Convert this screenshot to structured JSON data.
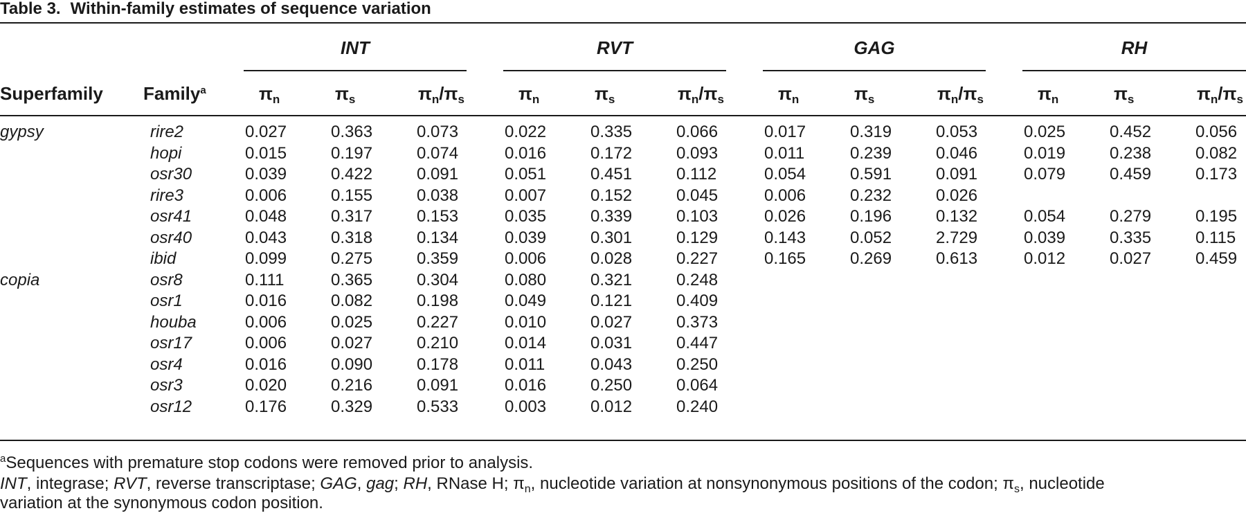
{
  "table": {
    "label": "Table 3.",
    "title": "Within-family estimates of sequence variation",
    "headers": {
      "superfamily": "Superfamily",
      "family": "Family",
      "family_sup": "a",
      "groups": [
        "INT",
        "RVT",
        "GAG",
        "RH"
      ],
      "sub": [
        {
          "pi": "π",
          "sub": "n"
        },
        {
          "pi": "π",
          "sub": "s"
        },
        {
          "pi": "π",
          "sub": "n",
          "pi2": "π",
          "sub2": "s"
        }
      ]
    },
    "rows": [
      {
        "superfamily": "gypsy",
        "family": "rire2",
        "values": [
          "0.027",
          "0.363",
          "0.073",
          "0.022",
          "0.335",
          "0.066",
          "0.017",
          "0.319",
          "0.053",
          "0.025",
          "0.452",
          "0.056"
        ]
      },
      {
        "superfamily": "",
        "family": "hopi",
        "values": [
          "0.015",
          "0.197",
          "0.074",
          "0.016",
          "0.172",
          "0.093",
          "0.011",
          "0.239",
          "0.046",
          "0.019",
          "0.238",
          "0.082"
        ]
      },
      {
        "superfamily": "",
        "family": "osr30",
        "values": [
          "0.039",
          "0.422",
          "0.091",
          "0.051",
          "0.451",
          "0.112",
          "0.054",
          "0.591",
          "0.091",
          "0.079",
          "0.459",
          "0.173"
        ]
      },
      {
        "superfamily": "",
        "family": "rire3",
        "values": [
          "0.006",
          "0.155",
          "0.038",
          "0.007",
          "0.152",
          "0.045",
          "0.006",
          "0.232",
          "0.026",
          "",
          "",
          ""
        ]
      },
      {
        "superfamily": "",
        "family": "osr41",
        "values": [
          "0.048",
          "0.317",
          "0.153",
          "0.035",
          "0.339",
          "0.103",
          "0.026",
          "0.196",
          "0.132",
          "0.054",
          "0.279",
          "0.195"
        ]
      },
      {
        "superfamily": "",
        "family": "osr40",
        "values": [
          "0.043",
          "0.318",
          "0.134",
          "0.039",
          "0.301",
          "0.129",
          "0.143",
          "0.052",
          "2.729",
          "0.039",
          "0.335",
          "0.115"
        ]
      },
      {
        "superfamily": "",
        "family": "ibid",
        "values": [
          "0.099",
          "0.275",
          "0.359",
          "0.006",
          "0.028",
          "0.227",
          "0.165",
          "0.269",
          "0.613",
          "0.012",
          "0.027",
          "0.459"
        ]
      },
      {
        "superfamily": "copia",
        "family": "osr8",
        "values": [
          "0.111",
          "0.365",
          "0.304",
          "0.080",
          "0.321",
          "0.248",
          "",
          "",
          "",
          "",
          "",
          ""
        ]
      },
      {
        "superfamily": "",
        "family": "osr1",
        "values": [
          "0.016",
          "0.082",
          "0.198",
          "0.049",
          "0.121",
          "0.409",
          "",
          "",
          "",
          "",
          "",
          ""
        ]
      },
      {
        "superfamily": "",
        "family": "houba",
        "values": [
          "0.006",
          "0.025",
          "0.227",
          "0.010",
          "0.027",
          "0.373",
          "",
          "",
          "",
          "",
          "",
          ""
        ]
      },
      {
        "superfamily": "",
        "family": "osr17",
        "values": [
          "0.006",
          "0.027",
          "0.210",
          "0.014",
          "0.031",
          "0.447",
          "",
          "",
          "",
          "",
          "",
          ""
        ]
      },
      {
        "superfamily": "",
        "family": "osr4",
        "values": [
          "0.016",
          "0.090",
          "0.178",
          "0.011",
          "0.043",
          "0.250",
          "",
          "",
          "",
          "",
          "",
          ""
        ]
      },
      {
        "superfamily": "",
        "family": "osr3",
        "values": [
          "0.020",
          "0.216",
          "0.091",
          "0.016",
          "0.250",
          "0.064",
          "",
          "",
          "",
          "",
          "",
          ""
        ]
      },
      {
        "superfamily": "",
        "family": "osr12",
        "values": [
          "0.176",
          "0.329",
          "0.533",
          "0.003",
          "0.012",
          "0.240",
          "",
          "",
          "",
          "",
          "",
          ""
        ]
      }
    ],
    "footnote_a": {
      "sup": "a",
      "text": "Sequences with premature stop codons were removed prior to analysis."
    },
    "abbrev": {
      "int": "INT",
      "int_def": ", integrase; ",
      "rvt": "RVT",
      "rvt_def": ", reverse transcriptase; ",
      "gag": "GAG",
      "gag_sep": ", ",
      "gag_it": "gag",
      "gag_end": "; ",
      "rh": "RH",
      "rh_def": ", RNase H; ",
      "pin": "π",
      "pin_sub": "n",
      "pin_def": ", nucleotide variation at nonsynonymous positions of the codon; ",
      "pis": "π",
      "pis_sub": "s",
      "pis_def": ", nucleotide",
      "line2": "variation at the synonymous codon position."
    }
  }
}
